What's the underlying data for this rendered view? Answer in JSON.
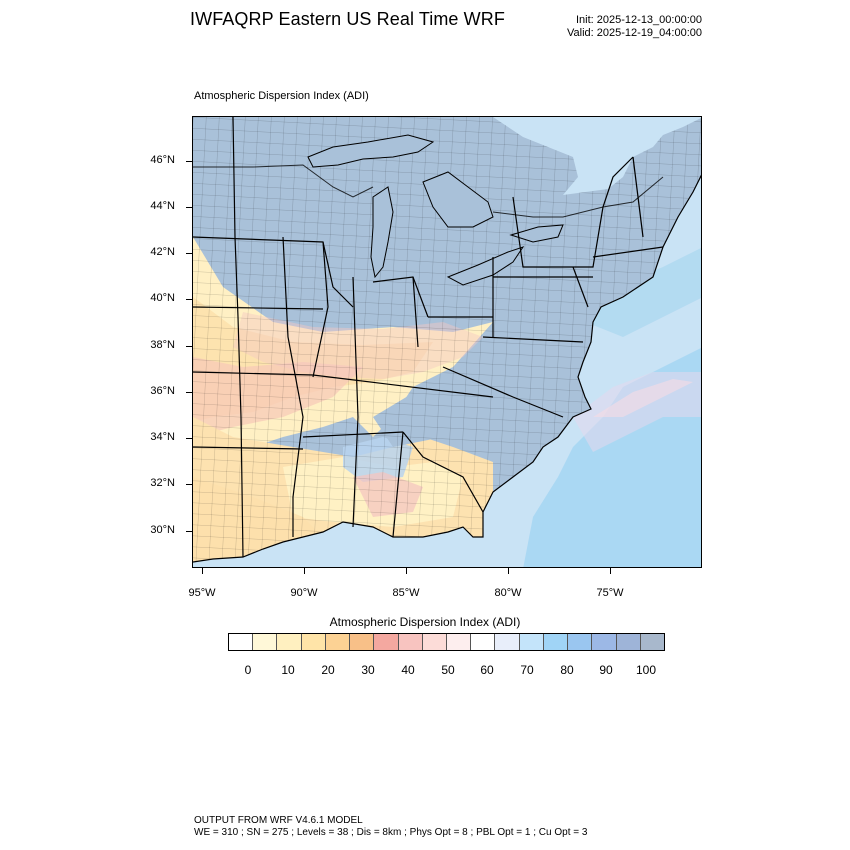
{
  "header": {
    "title": "IWFAQRP Eastern US Real Time WRF",
    "init": "Init: 2025-12-13_00:00:00",
    "valid": "Valid: 2025-12-19_04:00:00"
  },
  "plot": {
    "title": "Atmospheric Dispersion Index   (ADI)",
    "lat_labels": [
      "46°N",
      "44°N",
      "42°N",
      "40°N",
      "38°N",
      "36°N",
      "34°N",
      "32°N",
      "30°N"
    ],
    "lon_labels": [
      "95°W",
      "90°W",
      "85°W",
      "80°W",
      "75°W"
    ]
  },
  "colorbar": {
    "title": "Atmospheric Dispersion Index  (ADI)",
    "labels": [
      "0",
      "10",
      "20",
      "30",
      "40",
      "50",
      "60",
      "70",
      "80",
      "90",
      "100"
    ],
    "colors": [
      "#ffffff",
      "#fff8d8",
      "#fff0c0",
      "#ffe4a8",
      "#fcd294",
      "#f8c088",
      "#f4a8a0",
      "#f8c4c0",
      "#fcdcd8",
      "#fdeeee",
      "#ffffff",
      "#e8eefa",
      "#c4e4fa",
      "#a0d4f6",
      "#9ac6f0",
      "#9cb8e6",
      "#9eb4d8",
      "#a8b8cc"
    ],
    "scale": "0 to 100, 18 color intervals"
  },
  "map_colors": {
    "high_adi": "#a9c1d9",
    "low_adi_orange": "#fde0ac",
    "low_adi_yellow": "#fff2c4",
    "pink_band": "#f4c8c4",
    "ocean_cyan": "#9ad4f2",
    "ocean_light": "#cde8f8",
    "county_lines": "#000000"
  },
  "footer": {
    "line1": "OUTPUT FROM WRF V4.6.1 MODEL",
    "line2": "WE = 310 ; SN = 275 ; Levels = 38 ; Dis = 8km ; Phys Opt = 8 ; PBL Opt = 1 ; Cu Opt = 3"
  }
}
